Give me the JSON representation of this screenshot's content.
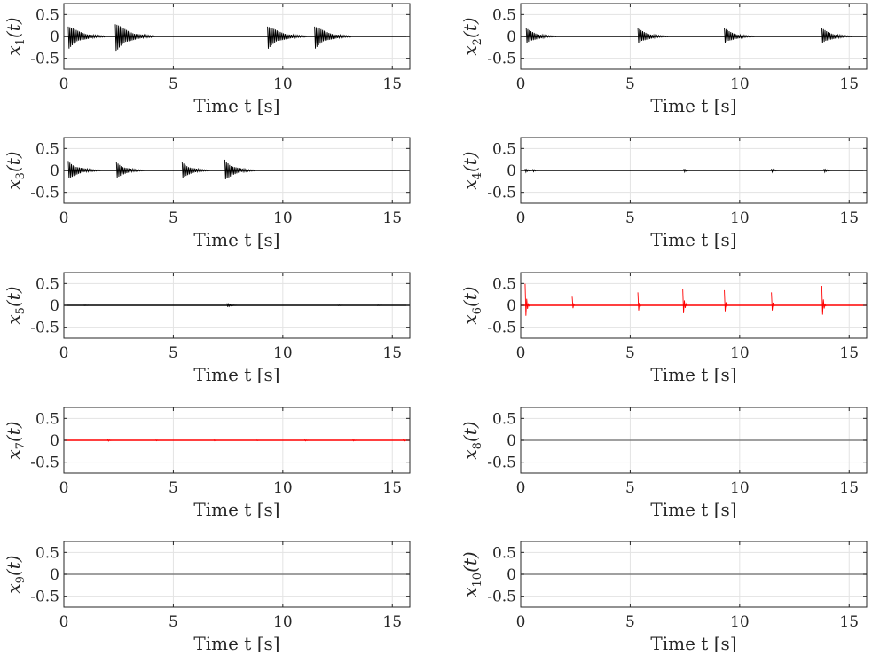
{
  "chart_data": [
    {
      "type": "line",
      "series": [
        {
          "color": "#000000",
          "bursts": [
            {
              "t": 0.2,
              "amp": 0.3,
              "decay": 1.7
            },
            {
              "t": 2.35,
              "amp": 0.37,
              "decay": 1.8
            },
            {
              "t": 9.3,
              "amp": 0.3,
              "decay": 1.8
            },
            {
              "t": 11.45,
              "amp": 0.3,
              "decay": 1.7
            }
          ]
        }
      ],
      "xlabel": "Time t [s]",
      "ylabel": "x",
      "ylabel_sub": "1",
      "ylabel_suffix": "(t)",
      "xlim": [
        0,
        15.8
      ],
      "ylim": [
        -0.75,
        0.75
      ],
      "xticks": [
        0,
        5,
        10,
        15
      ],
      "yticks": [
        0.5,
        0,
        -0.5
      ],
      "ytick_labels": [
        "0.5",
        "0",
        "-0.5"
      ],
      "grid": true
    },
    {
      "type": "line",
      "series": [
        {
          "color": "#000000",
          "bursts": [
            {
              "t": 0.25,
              "amp": 0.2,
              "decay": 1.4
            },
            {
              "t": 5.35,
              "amp": 0.2,
              "decay": 1.4
            },
            {
              "t": 9.3,
              "amp": 0.2,
              "decay": 1.4
            },
            {
              "t": 13.75,
              "amp": 0.2,
              "decay": 1.4
            }
          ]
        }
      ],
      "xlabel": "Time t [s]",
      "ylabel": "x",
      "ylabel_sub": "2",
      "ylabel_suffix": "(t)",
      "xlim": [
        0,
        15.8
      ],
      "ylim": [
        -0.75,
        0.75
      ],
      "xticks": [
        0,
        5,
        10,
        15
      ],
      "yticks": [
        0.5,
        0,
        -0.5
      ],
      "ytick_labels": [
        "0.5",
        "0",
        "-0.5"
      ],
      "grid": true
    },
    {
      "type": "line",
      "series": [
        {
          "color": "#000000",
          "bursts": [
            {
              "t": 0.2,
              "amp": 0.22,
              "decay": 1.5
            },
            {
              "t": 2.4,
              "amp": 0.2,
              "decay": 1.3
            },
            {
              "t": 5.4,
              "amp": 0.2,
              "decay": 1.3
            },
            {
              "t": 7.35,
              "amp": 0.25,
              "decay": 1.4
            }
          ]
        }
      ],
      "xlabel": "Time t [s]",
      "ylabel": "x",
      "ylabel_sub": "3",
      "ylabel_suffix": "(t)",
      "xlim": [
        0,
        15.8
      ],
      "ylim": [
        -0.75,
        0.75
      ],
      "xticks": [
        0,
        5,
        10,
        15
      ],
      "yticks": [
        0.5,
        0,
        -0.5
      ],
      "ytick_labels": [
        "0.5",
        "0",
        "-0.5"
      ],
      "grid": true
    },
    {
      "type": "line",
      "series": [
        {
          "color": "#000000",
          "bursts": [
            {
              "t": 0.2,
              "amp": 0.05,
              "decay": 0.4
            },
            {
              "t": 0.55,
              "amp": 0.04,
              "decay": 0.3
            },
            {
              "t": 7.45,
              "amp": 0.05,
              "decay": 0.3
            },
            {
              "t": 11.45,
              "amp": 0.05,
              "decay": 0.4
            },
            {
              "t": 13.85,
              "amp": 0.05,
              "decay": 0.4
            }
          ]
        }
      ],
      "xlabel": "Time t [s]",
      "ylabel": "x",
      "ylabel_sub": "4",
      "ylabel_suffix": "(t)",
      "xlim": [
        0,
        15.8
      ],
      "ylim": [
        -0.75,
        0.75
      ],
      "xticks": [
        0,
        5,
        10,
        15
      ],
      "yticks": [
        0.5,
        0,
        -0.5
      ],
      "ytick_labels": [
        "0.5",
        "0",
        "-0.5"
      ],
      "grid": true
    },
    {
      "type": "line",
      "series": [
        {
          "color": "#000000",
          "bursts": [
            {
              "t": 7.45,
              "amp": 0.05,
              "decay": 0.5
            },
            {
              "t": 0.9,
              "amp": 0.01,
              "decay": 0.5
            },
            {
              "t": 12.5,
              "amp": 0.01,
              "decay": 0.5
            },
            {
              "t": 14.3,
              "amp": 0.01,
              "decay": 0.5
            }
          ]
        }
      ],
      "xlabel": "Time t [s]",
      "ylabel": "x",
      "ylabel_sub": "5",
      "ylabel_suffix": "(t)",
      "xlim": [
        0,
        15.8
      ],
      "ylim": [
        -0.75,
        0.75
      ],
      "xticks": [
        0,
        5,
        10,
        15
      ],
      "yticks": [
        0.5,
        0,
        -0.5
      ],
      "ytick_labels": [
        "0.5",
        "0",
        "-0.5"
      ],
      "grid": true
    },
    {
      "type": "line",
      "series": [
        {
          "color": "#ff0000",
          "bursts": [
            {
              "t": 0.2,
              "amp": 0.5,
              "decay": 0.2
            },
            {
              "t": 2.35,
              "amp": 0.2,
              "decay": 0.1
            },
            {
              "t": 5.35,
              "amp": 0.3,
              "decay": 0.15
            },
            {
              "t": 7.4,
              "amp": 0.38,
              "decay": 0.2
            },
            {
              "t": 9.3,
              "amp": 0.35,
              "decay": 0.15
            },
            {
              "t": 11.45,
              "amp": 0.3,
              "decay": 0.15
            },
            {
              "t": 13.75,
              "amp": 0.45,
              "decay": 0.2
            }
          ]
        }
      ],
      "xlabel": "Time t [s]",
      "ylabel": "x",
      "ylabel_sub": "6",
      "ylabel_suffix": "(t)",
      "xlim": [
        0,
        15.8
      ],
      "ylim": [
        -0.75,
        0.75
      ],
      "xticks": [
        0,
        5,
        10,
        15
      ],
      "yticks": [
        0.5,
        0,
        -0.5
      ],
      "ytick_labels": [
        "0.5",
        "0",
        "-0.5"
      ],
      "grid": true
    },
    {
      "type": "line",
      "series": [
        {
          "color": "#ff0000",
          "bursts": [
            {
              "t": 2.0,
              "amp": 0.03,
              "decay": 0.25
            },
            {
              "t": 4.2,
              "amp": 0.02,
              "decay": 0.2
            },
            {
              "t": 6.85,
              "amp": 0.02,
              "decay": 0.2
            },
            {
              "t": 8.8,
              "amp": 0.015,
              "decay": 0.2
            },
            {
              "t": 11.0,
              "amp": 0.025,
              "decay": 0.2
            },
            {
              "t": 13.2,
              "amp": 0.025,
              "decay": 0.2
            },
            {
              "t": 15.5,
              "amp": 0.025,
              "decay": 0.2
            }
          ]
        }
      ],
      "xlabel": "Time t [s]",
      "ylabel": "x",
      "ylabel_sub": "7",
      "ylabel_suffix": "(t)",
      "xlim": [
        0,
        15.8
      ],
      "ylim": [
        -0.75,
        0.75
      ],
      "xticks": [
        0,
        5,
        10,
        15
      ],
      "yticks": [
        0.5,
        0,
        -0.5
      ],
      "ytick_labels": [
        "0.5",
        "0",
        "-0.5"
      ],
      "grid": true
    },
    {
      "type": "line",
      "series": [
        {
          "color": "#808080",
          "bursts": []
        }
      ],
      "xlabel": "Time t [s]",
      "ylabel": "x",
      "ylabel_sub": "8",
      "ylabel_suffix": "(t)",
      "xlim": [
        0,
        15.8
      ],
      "ylim": [
        -0.75,
        0.75
      ],
      "xticks": [
        0,
        5,
        10,
        15
      ],
      "yticks": [
        0.5,
        0,
        -0.5
      ],
      "ytick_labels": [
        "0.5",
        "0",
        "-0.5"
      ],
      "grid": true
    },
    {
      "type": "line",
      "series": [
        {
          "color": "#808080",
          "bursts": []
        }
      ],
      "xlabel": "Time t [s]",
      "ylabel": "x",
      "ylabel_sub": "9",
      "ylabel_suffix": "(t)",
      "xlim": [
        0,
        15.8
      ],
      "ylim": [
        -0.75,
        0.75
      ],
      "xticks": [
        0,
        5,
        10,
        15
      ],
      "yticks": [
        0.5,
        0,
        -0.5
      ],
      "ytick_labels": [
        "0.5",
        "0",
        "-0.5"
      ],
      "grid": true
    },
    {
      "type": "line",
      "series": [
        {
          "color": "#808080",
          "bursts": []
        }
      ],
      "xlabel": "Time t [s]",
      "ylabel": "x",
      "ylabel_sub": "10",
      "ylabel_suffix": "(t)",
      "xlim": [
        0,
        15.8
      ],
      "ylim": [
        -0.75,
        0.75
      ],
      "xticks": [
        0,
        5,
        10,
        15
      ],
      "yticks": [
        0.5,
        0,
        -0.5
      ],
      "ytick_labels": [
        "0.5",
        "0",
        "-0.5"
      ],
      "grid": true
    }
  ]
}
